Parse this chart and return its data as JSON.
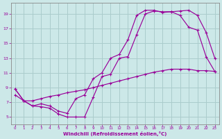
{
  "xlabel": "Windchill (Refroidissement éolien,°C)",
  "bg_color": "#cce8e8",
  "grid_color": "#aacccc",
  "line_color": "#990099",
  "xlim": [
    -0.5,
    23.5
  ],
  "ylim": [
    4.0,
    20.5
  ],
  "xticks": [
    0,
    1,
    2,
    3,
    4,
    5,
    6,
    7,
    8,
    9,
    10,
    11,
    12,
    13,
    14,
    15,
    16,
    17,
    18,
    19,
    20,
    21,
    22,
    23
  ],
  "yticks": [
    5,
    7,
    9,
    11,
    13,
    15,
    17,
    19
  ],
  "line1_x": [
    0,
    1,
    2,
    3,
    4,
    5,
    6,
    7,
    8,
    9,
    10,
    11,
    12,
    13,
    14,
    15,
    16,
    17,
    18,
    19,
    20,
    21,
    22,
    23
  ],
  "line1_y": [
    8.8,
    7.2,
    6.5,
    6.4,
    6.2,
    5.4,
    5.0,
    5.0,
    5.0,
    7.7,
    10.5,
    10.8,
    13.0,
    13.2,
    16.2,
    19.0,
    19.4,
    19.3,
    19.3,
    19.4,
    19.5,
    18.8,
    16.5,
    13.0
  ],
  "line2_x": [
    0,
    1,
    2,
    3,
    4,
    5,
    6,
    7,
    8,
    9,
    10,
    11,
    12,
    13,
    14,
    15,
    16,
    17,
    18,
    19,
    20,
    21,
    22,
    23
  ],
  "line2_y": [
    8.8,
    7.2,
    6.5,
    6.8,
    6.5,
    5.8,
    5.5,
    7.5,
    8.0,
    10.2,
    11.0,
    13.0,
    13.5,
    15.5,
    18.8,
    19.5,
    19.5,
    19.2,
    19.3,
    18.8,
    17.2,
    16.8,
    13.2,
    11.2
  ],
  "line3_x": [
    0,
    1,
    2,
    3,
    4,
    5,
    6,
    7,
    8,
    9,
    10,
    11,
    12,
    13,
    14,
    15,
    16,
    17,
    18,
    19,
    20,
    21,
    22,
    23
  ],
  "line3_y": [
    8.0,
    7.2,
    7.2,
    7.5,
    7.8,
    8.0,
    8.3,
    8.5,
    8.7,
    9.0,
    9.3,
    9.6,
    9.9,
    10.2,
    10.5,
    10.8,
    11.1,
    11.3,
    11.5,
    11.5,
    11.5,
    11.3,
    11.3,
    11.2
  ]
}
